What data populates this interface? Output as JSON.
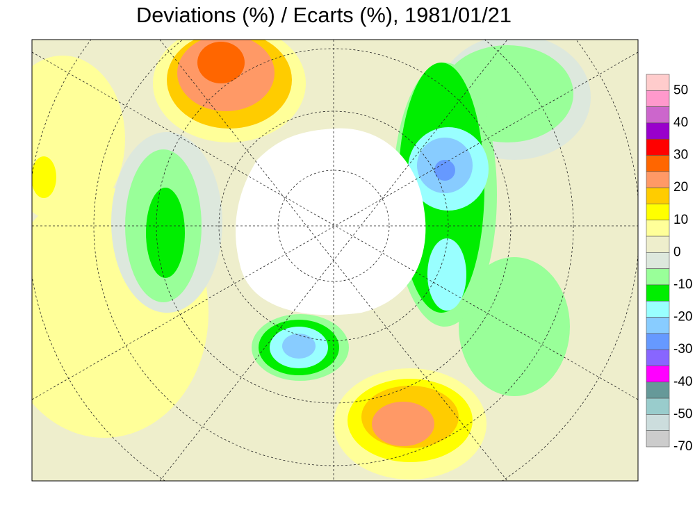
{
  "header": {
    "title": "Deviations (%) / Ecarts (%), 1981/01/21"
  },
  "colorbar": {
    "colors": [
      "#ffcccc",
      "#ff99cc",
      "#cc66cc",
      "#9900cc",
      "#ff0000",
      "#ff6600",
      "#ff9966",
      "#ffcc00",
      "#ffff00",
      "#ffff99",
      "#eeeecc",
      "#dde8dd",
      "#99ff99",
      "#00ee00",
      "#99ffff",
      "#88ccff",
      "#6699ff",
      "#8866ff",
      "#ff00ff",
      "#669999",
      "#99cccc",
      "#ccdddd",
      "#cccccc"
    ],
    "labels": [
      "50",
      "40",
      "30",
      "20",
      "10",
      "0",
      "-10",
      "-20",
      "-30",
      "-40",
      "-50",
      "-70"
    ]
  }
}
